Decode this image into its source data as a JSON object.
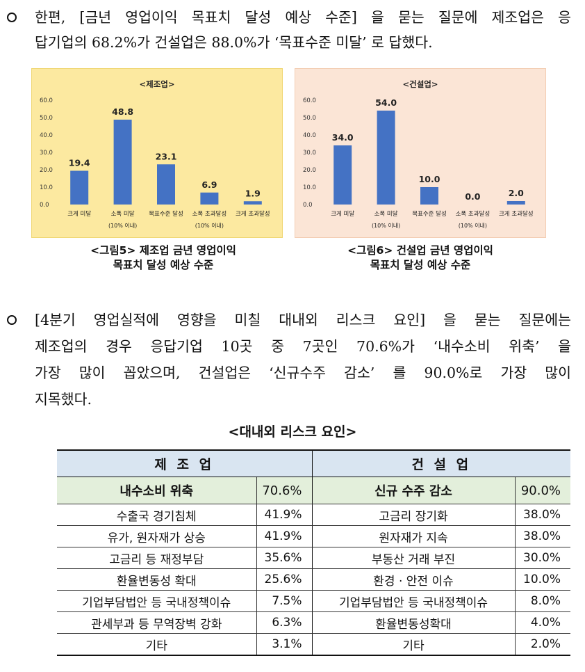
{
  "paragraph1": {
    "lines": [
      "한편, [금년 영업이익 목표치 달성 예상 수준] 을 묻는 질문에 제조업은 응",
      "답기업의 68.2%가 건설업은 88.0%가 ‘목표수준 미달’ 로 답했다."
    ]
  },
  "chart_data": [
    {
      "type": "bar",
      "title": "<제조업>",
      "categories": [
        "크게 미달",
        "소폭 미달",
        "목표수준 달성",
        "소폭 초과달성",
        "크게 초과달성"
      ],
      "category_notes": [
        "",
        "(10% 이내)",
        "",
        "(10% 이내)",
        ""
      ],
      "values": [
        19.4,
        48.8,
        23.1,
        6.9,
        1.9
      ],
      "value_labels": [
        "19.4",
        "48.8",
        "23.1",
        "6.9",
        "1.9"
      ],
      "yticks": [
        "0.0",
        "10.0",
        "20.0",
        "30.0",
        "40.0",
        "50.0",
        "60.0"
      ],
      "ylim": [
        0,
        60
      ],
      "background": "#fce9a0",
      "border": "#f0d774",
      "bar_color": "#4472c4"
    },
    {
      "type": "bar",
      "title": "<건설업>",
      "categories": [
        "크게 미달",
        "소폭 미달",
        "목표수준 달성",
        "소폭 초과달성",
        "크게 초과달성"
      ],
      "category_notes": [
        "",
        "(10% 이내)",
        "",
        "(10% 이내)",
        ""
      ],
      "values": [
        34.0,
        54.0,
        10.0,
        0.0,
        2.0
      ],
      "value_labels": [
        "34.0",
        "54.0",
        "10.0",
        "0.0",
        "2.0"
      ],
      "yticks": [
        "0.0",
        "10.0",
        "20.0",
        "30.0",
        "40.0",
        "50.0",
        "60.0"
      ],
      "ylim": [
        0,
        60
      ],
      "background": "#fbe5d6",
      "border": "#f3cdb3",
      "bar_color": "#4472c4"
    }
  ],
  "captions": {
    "fig5_line1": "<그림5> 제조업 금년 영업이익",
    "fig5_line2": "목표치 달성 예상 수준",
    "fig6_line1": "<그림6> 건설업 금년 영업이익",
    "fig6_line2": "목표치 달성 예상 수준"
  },
  "paragraph2": {
    "lines": [
      "[4분기 영업실적에 영향을 미칠 대내외 리스크 요인] 을 묻는 질문에는",
      "제조업의 경우 응답기업 10곳 중 7곳인 70.6%가 ‘내수소비 위축’ 을",
      "가장 많이 꼽았으며, 건설업은 ‘신규수주 감소’ 를 90.0%로 가장 많이",
      "지목했다."
    ]
  },
  "table": {
    "title": "<대내외 리스크 요인>",
    "header_left": "제 조 업",
    "header_right": "건 설 업",
    "rows": [
      {
        "m_name": "내수소비 위축",
        "m_pct": "70.6%",
        "c_name": "신규 수주 감소",
        "c_pct": "90.0%"
      },
      {
        "m_name": "수출국 경기침체",
        "m_pct": "41.9%",
        "c_name": "고금리 장기화",
        "c_pct": "38.0%"
      },
      {
        "m_name": "유가, 원자재가 상승",
        "m_pct": "41.9%",
        "c_name": "원자재가 지속",
        "c_pct": "38.0%"
      },
      {
        "m_name": "고금리 등 재정부담",
        "m_pct": "35.6%",
        "c_name": "부동산 거래 부진",
        "c_pct": "30.0%"
      },
      {
        "m_name": "환율변동성 확대",
        "m_pct": "25.6%",
        "c_name": "환경 · 안전 이슈",
        "c_pct": "10.0%"
      },
      {
        "m_name": "기업부담법안 등 국내정책이슈",
        "m_pct": "7.5%",
        "c_name": "기업부담법안 등 국내정책이슈",
        "c_pct": "8.0%"
      },
      {
        "m_name": "관세부과 등 무역장벽 강화",
        "m_pct": "6.3%",
        "c_name": "환율변동성확대",
        "c_pct": "4.0%"
      },
      {
        "m_name": "기타",
        "m_pct": "3.1%",
        "c_name": "기타",
        "c_pct": "2.0%"
      }
    ]
  }
}
